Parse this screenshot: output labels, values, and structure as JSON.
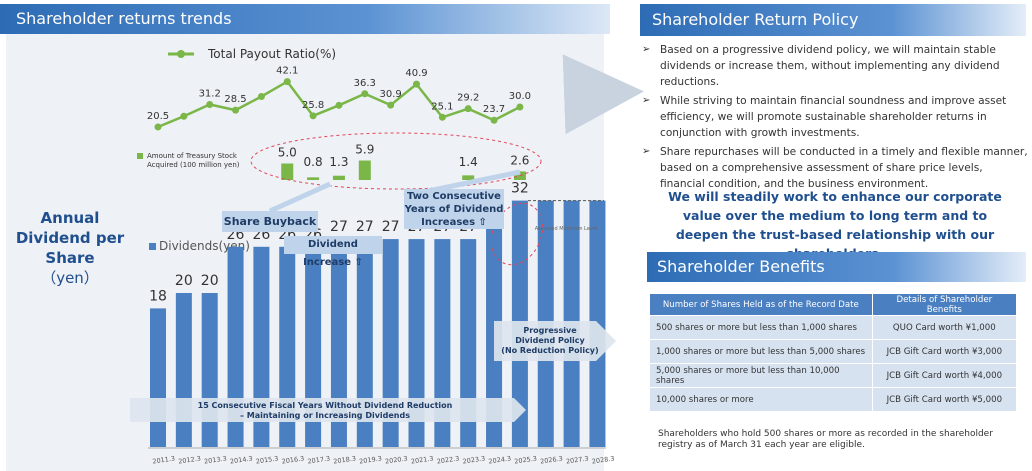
{
  "left_title": "Shareholder returns trends",
  "y_label": {
    "line1": "Annual",
    "line2": "Dividend per",
    "line3": "Share",
    "unit": "（yen）"
  },
  "callouts": {
    "share_buyback": "Share Buyback",
    "two_consecutive": "Two Consecutive Years of Dividend Increases ⇧",
    "dividend_increase": "Dividend Increase ⇧",
    "assumed_minimum": "Assumed Minimum Level",
    "progressive_policy": "Progressive Dividend Policy (No Reduction Policy)",
    "fifteen_years": "15 Consecutive Fiscal Years Without Dividend Reduction – Maintaining or Increasing Dividends"
  },
  "chart_data": [
    {
      "type": "line",
      "title": "Total Payout Ratio(%)",
      "legend": "Total Payout Ratio(%)",
      "categories": [
        "2011.3",
        "2012.3",
        "2013.3",
        "2014.3",
        "2015.3",
        "2016.3",
        "2017.3",
        "2018.3",
        "2019.3",
        "2020.3",
        "2021.3",
        "2022.3",
        "2023.3",
        "2024.3",
        "2025.3"
      ],
      "values": [
        20.5,
        null,
        31.2,
        28.5,
        null,
        42.1,
        25.8,
        null,
        36.3,
        30.9,
        40.9,
        25.1,
        29.2,
        23.7,
        30.0
      ],
      "interpolated_points": [
        null,
        25.6,
        null,
        null,
        35.0,
        null,
        null,
        30.8,
        null,
        null,
        null,
        null,
        null,
        null,
        null
      ],
      "labels": [
        "20.5",
        "",
        "31.2",
        "28.5",
        "",
        "42.1",
        "25.8",
        "",
        "36.3",
        "30.9",
        "40.9",
        "25.1",
        "29.2",
        "23.7",
        "30.0"
      ],
      "color": "#7ab648"
    },
    {
      "type": "bar",
      "title": "Amount of Treasury Stock Acquired (100 million yen)",
      "legend": "Amount of Treasury Stock Acquired (100 million yen)",
      "categories": [
        "2011.3",
        "2012.3",
        "2013.3",
        "2014.3",
        "2015.3",
        "2016.3",
        "2017.3",
        "2018.3",
        "2019.3",
        "2020.3",
        "2021.3",
        "2022.3",
        "2023.3",
        "2024.3",
        "2025.3"
      ],
      "values": [
        0,
        0,
        0,
        0,
        0,
        5.0,
        0.8,
        1.3,
        5.9,
        0,
        0,
        0,
        1.4,
        0,
        2.6
      ],
      "labels": [
        "",
        "",
        "",
        "",
        "",
        "5.0",
        "0.8",
        "1.3",
        "5.9",
        "",
        "",
        "",
        "1.4",
        "",
        "2.6"
      ],
      "color": "#7ab648"
    },
    {
      "type": "bar",
      "title": "Dividends(yen)",
      "legend": "Dividends(yen)",
      "categories": [
        "2011.3",
        "2012.3",
        "2013.3",
        "2014.3",
        "2015.3",
        "2016.3",
        "2017.3",
        "2018.3",
        "2019.3",
        "2020.3",
        "2021.3",
        "2022.3",
        "2023.3",
        "2024.3",
        "2025.3",
        "2026.3",
        "2027.3",
        "2028.3"
      ],
      "values": [
        18,
        20,
        20,
        26,
        26,
        26,
        26,
        27,
        27,
        27,
        27,
        27,
        27,
        30,
        32,
        32,
        32,
        32
      ],
      "labels": [
        "18",
        "20",
        "20",
        "26",
        "26",
        "26",
        "26",
        "27",
        "27",
        "27",
        "27",
        "27",
        "27",
        "30",
        "32",
        "",
        "",
        ""
      ],
      "ylim": [
        0,
        32
      ],
      "color": "#4a7fc1"
    }
  ],
  "policy": {
    "title": "Shareholder Return Policy",
    "items": [
      "Based on a progressive dividend policy, we will maintain stable dividends or increase them, without implementing any dividend reductions.",
      "While striving to maintain financial soundness and improve asset efficiency, we will promote sustainable shareholder returns in conjunction with growth investments.",
      "Share repurchases will be conducted in a timely and flexible manner, based on a comprehensive assessment of share price levels, financial condition, and the business environment."
    ],
    "emphasis": "We will steadily work to enhance our corporate value over the medium to long term and to deepen the trust-based relationship with our shareholders."
  },
  "benefits": {
    "title": "Shareholder Benefits",
    "headers": [
      "Number of Shares Held as of the Record Date",
      "Details of Shareholder Benefits"
    ],
    "rows": [
      [
        "500 shares or more but less than 1,000 shares",
        "QUO Card worth ¥1,000"
      ],
      [
        "1,000 shares or more but less than 5,000 shares",
        "JCB Gift Card worth ¥3,000"
      ],
      [
        "5,000 shares or more but less than 10,000 shares",
        "JCB Gift Card worth ¥4,000"
      ],
      [
        "10,000 shares or more",
        "JCB Gift Card worth ¥5,000"
      ]
    ],
    "note": "Shareholders who hold 500 shares or more as recorded in the shareholder registry as of March 31 each year are eligible."
  },
  "colors": {
    "accent": "#2d6cb5",
    "line": "#7ab648",
    "bar": "#4a7fc1",
    "dashed_oval": "#e0485a"
  }
}
